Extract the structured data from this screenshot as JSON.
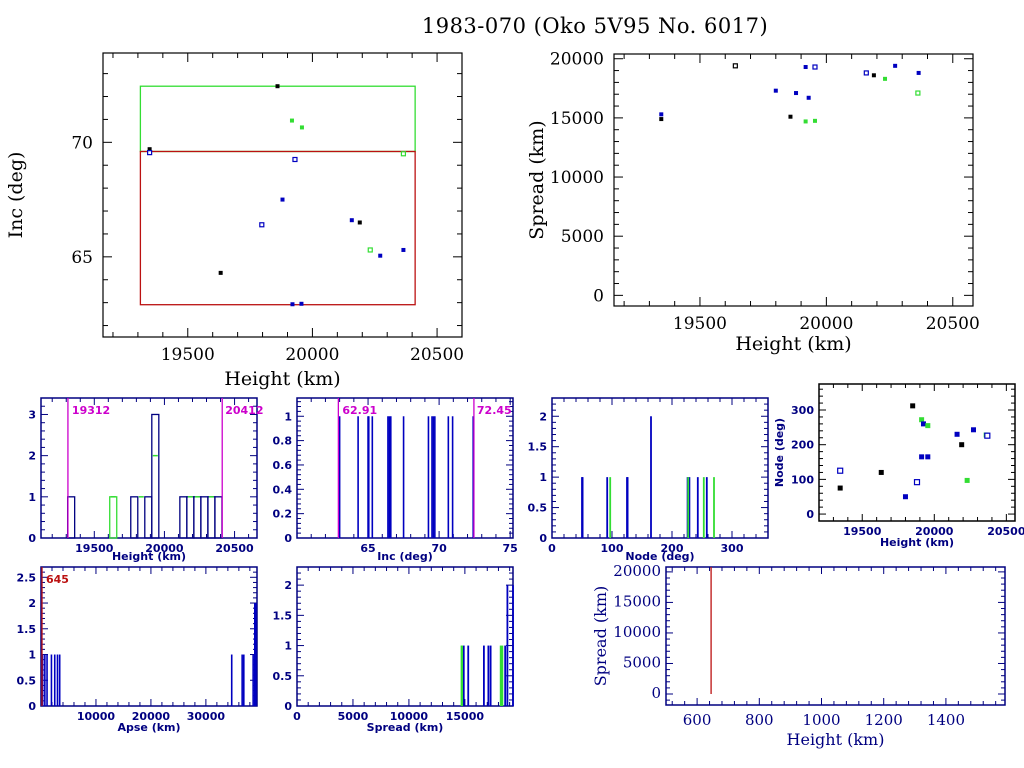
{
  "page_title": "1983-070 (Oko 5V95 No. 6017)",
  "colors": {
    "axis_black": "#000000",
    "axis_navy": "#000080",
    "blue": "#0000c0",
    "green": "#33dd33",
    "magenta": "#cc00cc",
    "red": "#bb1111"
  },
  "chart_data": [
    {
      "id": "inc_vs_height",
      "type": "scatter",
      "title": "",
      "xlabel": "Height (km)",
      "ylabel": "Inc (deg)",
      "xlim": [
        19160,
        20600
      ],
      "ylim": [
        61.5,
        73.9
      ],
      "xticks": [
        19500,
        20000,
        20500
      ],
      "yticks": [
        65,
        70
      ],
      "boxes": [
        {
          "name": "green-box",
          "color": "green",
          "x": [
            19310,
            20412
          ],
          "y": [
            69.6,
            72.45
          ]
        },
        {
          "name": "red-box",
          "color": "red",
          "x": [
            19310,
            20412
          ],
          "y": [
            62.91,
            69.6
          ]
        }
      ],
      "points": [
        {
          "x": 19347,
          "y": 69.7,
          "c": "black"
        },
        {
          "x": 19347,
          "y": 69.55,
          "c": "blue",
          "open": true
        },
        {
          "x": 19632,
          "y": 64.3,
          "c": "black"
        },
        {
          "x": 19797,
          "y": 66.4,
          "c": "blue",
          "open": true
        },
        {
          "x": 19860,
          "y": 72.45,
          "c": "black"
        },
        {
          "x": 19880,
          "y": 67.5,
          "c": "blue"
        },
        {
          "x": 19918,
          "y": 70.95,
          "c": "green"
        },
        {
          "x": 19958,
          "y": 70.65,
          "c": "green"
        },
        {
          "x": 19930,
          "y": 69.25,
          "c": "blue",
          "open": true
        },
        {
          "x": 19920,
          "y": 62.93,
          "c": "blue"
        },
        {
          "x": 19956,
          "y": 62.95,
          "c": "blue"
        },
        {
          "x": 20158,
          "y": 66.6,
          "c": "blue"
        },
        {
          "x": 20190,
          "y": 66.5,
          "c": "black"
        },
        {
          "x": 20232,
          "y": 65.3,
          "c": "green",
          "open": true
        },
        {
          "x": 20272,
          "y": 65.05,
          "c": "blue"
        },
        {
          "x": 20365,
          "y": 65.3,
          "c": "blue"
        },
        {
          "x": 20365,
          "y": 69.5,
          "c": "green",
          "open": true
        }
      ]
    },
    {
      "id": "spread_vs_height",
      "type": "scatter",
      "xlabel": "Height (km)",
      "ylabel": "Spread (km)",
      "xlim": [
        19160,
        20580
      ],
      "ylim": [
        -900,
        20400
      ],
      "xticks": [
        19500,
        20000,
        20500
      ],
      "yticks": [
        0,
        5000,
        10000,
        15000,
        20000
      ],
      "points": [
        {
          "x": 19347,
          "y": 15300,
          "c": "blue"
        },
        {
          "x": 19347,
          "y": 14900,
          "c": "black"
        },
        {
          "x": 19640,
          "y": 19400,
          "c": "black",
          "open": true
        },
        {
          "x": 19800,
          "y": 17300,
          "c": "blue"
        },
        {
          "x": 19858,
          "y": 15100,
          "c": "black"
        },
        {
          "x": 19880,
          "y": 17100,
          "c": "blue"
        },
        {
          "x": 19918,
          "y": 19300,
          "c": "blue"
        },
        {
          "x": 19955,
          "y": 19300,
          "c": "blue",
          "open": true
        },
        {
          "x": 19930,
          "y": 16700,
          "c": "blue"
        },
        {
          "x": 19918,
          "y": 14700,
          "c": "green"
        },
        {
          "x": 19955,
          "y": 14750,
          "c": "green"
        },
        {
          "x": 20158,
          "y": 18800,
          "c": "blue",
          "open": true
        },
        {
          "x": 20188,
          "y": 18600,
          "c": "black"
        },
        {
          "x": 20232,
          "y": 18300,
          "c": "green"
        },
        {
          "x": 20272,
          "y": 19400,
          "c": "blue"
        },
        {
          "x": 20365,
          "y": 18800,
          "c": "blue"
        },
        {
          "x": 20362,
          "y": 17100,
          "c": "green",
          "open": true
        }
      ]
    },
    {
      "id": "height_histogram",
      "type": "bar",
      "xlabel": "Height (km)",
      "ylabel": "",
      "xlim": [
        19120,
        20660
      ],
      "ylim": [
        0,
        3.4
      ],
      "xticks": [
        19500,
        20000,
        20500
      ],
      "yticks": [
        0,
        1,
        2,
        3
      ],
      "bin_width": 50,
      "markers": [
        {
          "x": 19312,
          "label": "19312"
        },
        {
          "x": 20412,
          "label": "20412"
        }
      ],
      "blue_bins": [
        {
          "x0": 19310,
          "n": 1
        },
        {
          "x0": 19760,
          "n": 1
        },
        {
          "x0": 19860,
          "n": 1
        },
        {
          "x0": 19910,
          "n": 3
        },
        {
          "x0": 20110,
          "n": 1
        },
        {
          "x0": 20160,
          "n": 1
        },
        {
          "x0": 20210,
          "n": 1
        },
        {
          "x0": 20260,
          "n": 1
        },
        {
          "x0": 20310,
          "n": 1
        },
        {
          "x0": 20360,
          "n": 1
        }
      ],
      "green_bins": [
        {
          "x0": 19610,
          "n": 1
        },
        {
          "x0": 19810,
          "n": 1
        },
        {
          "x0": 19910,
          "n": 2
        },
        {
          "x0": 20160,
          "n": 1
        },
        {
          "x0": 20210,
          "n": 1
        },
        {
          "x0": 20310,
          "n": 1
        }
      ]
    },
    {
      "id": "inc_histogram",
      "type": "bar",
      "xlabel": "Inc (deg)",
      "ylabel": "",
      "xlim": [
        60,
        75.2
      ],
      "ylim": [
        0,
        1.15
      ],
      "xticks": [
        65,
        70,
        75
      ],
      "yticks": [
        0,
        0.2,
        0.4,
        0.6,
        0.8,
        1
      ],
      "ytick_labels": [
        "0",
        "0.2",
        "0.4",
        "0.6",
        "0.8",
        "1"
      ],
      "markers": [
        {
          "x": 62.91,
          "label": "62.91"
        },
        {
          "x": 72.45,
          "label": "72.45"
        }
      ],
      "lines": [
        63.0,
        64.3,
        65.0,
        65.05,
        65.3,
        66.4,
        66.5,
        66.6,
        67.5,
        69.25,
        69.5,
        69.6,
        69.7,
        70.65,
        70.95,
        72.4
      ]
    },
    {
      "id": "node_histogram",
      "type": "bar",
      "xlabel": "Node (deg)",
      "ylabel": "",
      "xlim": [
        0,
        360
      ],
      "ylim": [
        0,
        2.3
      ],
      "xticks": [
        0,
        100,
        200,
        300
      ],
      "yticks": [
        0,
        0.5,
        1,
        1.5,
        2
      ],
      "blue_lines": [
        {
          "x": 50,
          "n": 1
        },
        {
          "x": 51,
          "n": 1
        },
        {
          "x": 92,
          "n": 1
        },
        {
          "x": 125,
          "n": 1
        },
        {
          "x": 126,
          "n": 1
        },
        {
          "x": 165,
          "n": 2
        },
        {
          "x": 226,
          "n": 1
        },
        {
          "x": 229,
          "n": 1
        },
        {
          "x": 243,
          "n": 1
        },
        {
          "x": 258,
          "n": 1
        }
      ],
      "green_lines": [
        {
          "x": 97,
          "n": 1
        },
        {
          "x": 227,
          "n": 1
        },
        {
          "x": 253,
          "n": 1
        },
        {
          "x": 270,
          "n": 1
        }
      ]
    },
    {
      "id": "node_vs_height",
      "type": "scatter",
      "xlabel": "Height (km)",
      "ylabel": "Node (deg)",
      "xlim": [
        19200,
        20560
      ],
      "ylim": [
        -20,
        375
      ],
      "xticks": [
        19500,
        20000,
        20500
      ],
      "yticks": [
        0,
        100,
        200,
        300
      ],
      "points": [
        {
          "x": 19347,
          "y": 125,
          "c": "blue",
          "open": true
        },
        {
          "x": 19347,
          "y": 75,
          "c": "black"
        },
        {
          "x": 19632,
          "y": 120,
          "c": "black"
        },
        {
          "x": 19800,
          "y": 50,
          "c": "blue"
        },
        {
          "x": 19850,
          "y": 312,
          "c": "black"
        },
        {
          "x": 19880,
          "y": 92,
          "c": "blue",
          "open": true
        },
        {
          "x": 19912,
          "y": 272,
          "c": "green"
        },
        {
          "x": 19925,
          "y": 260,
          "c": "blue"
        },
        {
          "x": 19955,
          "y": 255,
          "c": "green"
        },
        {
          "x": 19912,
          "y": 165,
          "c": "blue"
        },
        {
          "x": 19955,
          "y": 165,
          "c": "blue"
        },
        {
          "x": 20158,
          "y": 230,
          "c": "blue"
        },
        {
          "x": 20190,
          "y": 200,
          "c": "black"
        },
        {
          "x": 20228,
          "y": 97,
          "c": "green"
        },
        {
          "x": 20272,
          "y": 243,
          "c": "blue"
        },
        {
          "x": 20360,
          "y": 228,
          "c": "green"
        },
        {
          "x": 20368,
          "y": 226,
          "c": "blue",
          "open": true
        }
      ]
    },
    {
      "id": "apse_histogram",
      "type": "bar",
      "xlabel": "Apse (km)",
      "ylabel": "",
      "xlim": [
        0,
        39300
      ],
      "ylim": [
        0,
        2.7
      ],
      "xticks": [
        10000,
        20000,
        30000
      ],
      "yticks": [
        0,
        0.5,
        1,
        1.5,
        2,
        2.5
      ],
      "markers": [
        {
          "x": 0,
          "label": "645"
        }
      ],
      "lines": [
        {
          "x": 300,
          "n": 1
        },
        {
          "x": 700,
          "n": 1
        },
        {
          "x": 1100,
          "n": 1
        },
        {
          "x": 1900,
          "n": 1
        },
        {
          "x": 2500,
          "n": 1
        },
        {
          "x": 3000,
          "n": 1
        },
        {
          "x": 3400,
          "n": 1
        },
        {
          "x": 34700,
          "n": 1
        },
        {
          "x": 36600,
          "n": 1
        },
        {
          "x": 36900,
          "n": 1
        },
        {
          "x": 38600,
          "n": 1
        },
        {
          "x": 38900,
          "n": 2
        },
        {
          "x": 39100,
          "n": 2
        }
      ]
    },
    {
      "id": "spread_histogram",
      "type": "bar",
      "xlabel": "Spread (km)",
      "ylabel": "",
      "xlim": [
        0,
        19300
      ],
      "ylim": [
        0,
        2.3
      ],
      "xticks": [
        0,
        5000,
        10000,
        15000
      ],
      "yticks": [
        0,
        0.5,
        1,
        1.5,
        2
      ],
      "blue_lines": [
        {
          "x": 14900,
          "n": 1
        },
        {
          "x": 15300,
          "n": 1
        },
        {
          "x": 16700,
          "n": 1
        },
        {
          "x": 17100,
          "n": 1
        },
        {
          "x": 17300,
          "n": 1
        },
        {
          "x": 18600,
          "n": 1
        },
        {
          "x": 18800,
          "n": 2
        },
        {
          "x": 19300,
          "n": 2
        }
      ],
      "green_lines": [
        {
          "x": 14700,
          "n": 1
        },
        {
          "x": 14750,
          "n": 1
        },
        {
          "x": 18200,
          "n": 1
        },
        {
          "x": 18350,
          "n": 1
        }
      ]
    },
    {
      "id": "spread_vs_height_leo",
      "type": "line",
      "xlabel": "Height (km)",
      "ylabel": "Spread (km)",
      "xlim": [
        500,
        1590
      ],
      "ylim": [
        -1800,
        20800
      ],
      "xticks": [
        600,
        800,
        1000,
        1200,
        1400
      ],
      "yticks": [
        0,
        5000,
        10000,
        15000,
        20000
      ],
      "vline": {
        "x": 645,
        "y": [
          0,
          20800
        ],
        "c": "red"
      }
    }
  ]
}
